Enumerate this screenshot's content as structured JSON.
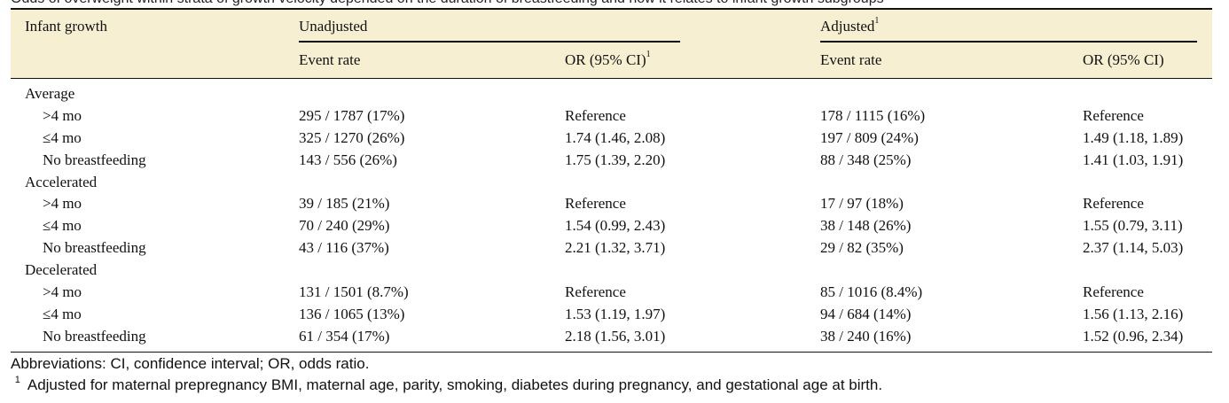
{
  "caption": "Odds of overweight within strata of growth velocity depended on the duration of breastfeeding and how it relates to infant growth subgroups",
  "header": {
    "row_label": "Infant growth",
    "group_unadjusted": "Unadjusted",
    "group_adjusted": "Adjusted",
    "group_adjusted_sup": "1",
    "col_event_rate": "Event rate",
    "col_or_unadj": "OR (95% CI)",
    "col_or_unadj_sup": "1",
    "col_event_rate_adj": "Event rate",
    "col_or_adj": "OR (95% CI)"
  },
  "groups": [
    {
      "label": "Average",
      "rows": [
        {
          "label": ">4 mo",
          "unadj_rate": "295 / 1787 (17%)",
          "unadj_or": "Reference",
          "adj_rate": "178 / 1115 (16%)",
          "adj_or": "Reference"
        },
        {
          "label": "≤4 mo",
          "unadj_rate": "325 / 1270 (26%)",
          "unadj_or": "1.74 (1.46, 2.08)",
          "adj_rate": "197 / 809 (24%)",
          "adj_or": "1.49 (1.18, 1.89)"
        },
        {
          "label": "No breastfeeding",
          "unadj_rate": "143 / 556 (26%)",
          "unadj_or": "1.75 (1.39, 2.20)",
          "adj_rate": "88 / 348 (25%)",
          "adj_or": "1.41 (1.03, 1.91)"
        }
      ]
    },
    {
      "label": "Accelerated",
      "rows": [
        {
          "label": ">4 mo",
          "unadj_rate": "39 / 185 (21%)",
          "unadj_or": "Reference",
          "adj_rate": "17 / 97 (18%)",
          "adj_or": "Reference"
        },
        {
          "label": "≤4 mo",
          "unadj_rate": "70 / 240 (29%)",
          "unadj_or": "1.54 (0.99, 2.43)",
          "adj_rate": "38 / 148 (26%)",
          "adj_or": "1.55 (0.79, 3.11)"
        },
        {
          "label": "No breastfeeding",
          "unadj_rate": "43 / 116 (37%)",
          "unadj_or": "2.21 (1.32, 3.71)",
          "adj_rate": "29 / 82 (35%)",
          "adj_or": "2.37 (1.14, 5.03)"
        }
      ]
    },
    {
      "label": "Decelerated",
      "rows": [
        {
          "label": ">4 mo",
          "unadj_rate": "131 / 1501 (8.7%)",
          "unadj_or": "Reference",
          "adj_rate": "85 / 1016 (8.4%)",
          "adj_or": "Reference"
        },
        {
          "label": "≤4 mo",
          "unadj_rate": "136 / 1065 (13%)",
          "unadj_or": "1.53 (1.19, 1.97)",
          "adj_rate": "94 / 684 (14%)",
          "adj_or": "1.56 (1.13, 2.16)"
        },
        {
          "label": "No breastfeeding",
          "unadj_rate": "61 / 354 (17%)",
          "unadj_or": "2.18 (1.56, 3.01)",
          "adj_rate": "38 / 240 (16%)",
          "adj_or": "1.52 (0.96, 2.34)"
        }
      ]
    }
  ],
  "notes": {
    "abbreviations": "Abbreviations: CI, confidence interval; OR, odds ratio.",
    "footnote_mark": "1",
    "footnote_text": "Adjusted for maternal prepregnancy BMI, maternal age, parity, smoking, diabetes during pregnancy, and gestational age at birth."
  }
}
